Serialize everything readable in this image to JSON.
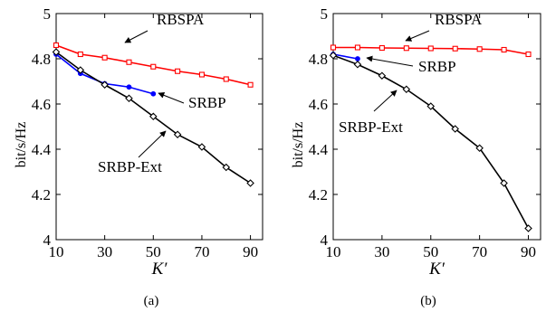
{
  "chart_data": [
    {
      "type": "line",
      "caption": "(a)",
      "xlabel": "K′",
      "ylabel": "bit/s/Hz",
      "xlim": [
        10,
        95
      ],
      "ylim": [
        4,
        5
      ],
      "xticks": [
        10,
        30,
        50,
        70,
        90
      ],
      "yticks": [
        4,
        4.2,
        4.4,
        4.6,
        4.8,
        5
      ],
      "ytick_labels": [
        "4",
        "4.2",
        "4.4",
        "4.6",
        "4.8",
        "5"
      ],
      "series": [
        {
          "name": "RBSPA",
          "color": "#ff0000",
          "marker": "square",
          "x": [
            10,
            20,
            30,
            40,
            50,
            60,
            70,
            80,
            90
          ],
          "y": [
            4.86,
            4.82,
            4.805,
            4.785,
            4.765,
            4.745,
            4.73,
            4.71,
            4.685
          ]
        },
        {
          "name": "SRBP",
          "color": "#0000ff",
          "marker": "dot",
          "x": [
            10,
            20,
            30,
            40,
            50
          ],
          "y": [
            4.82,
            4.735,
            4.69,
            4.675,
            4.645
          ]
        },
        {
          "name": "SRBP-Ext",
          "color": "#000000",
          "marker": "diamond",
          "x": [
            10,
            20,
            30,
            40,
            50,
            60,
            70,
            80,
            90
          ],
          "y": [
            4.83,
            4.75,
            4.685,
            4.625,
            4.545,
            4.465,
            4.41,
            4.32,
            4.25
          ]
        }
      ],
      "annotations": [
        {
          "text": "RBSPA",
          "series": "RBSPA"
        },
        {
          "text": "SRBP",
          "series": "SRBP"
        },
        {
          "text": "SRBP-Ext",
          "series": "SRBP-Ext"
        }
      ]
    },
    {
      "type": "line",
      "caption": "(b)",
      "xlabel": "K′",
      "ylabel": "bit/s/Hz",
      "xlim": [
        10,
        95
      ],
      "ylim": [
        4,
        5
      ],
      "xticks": [
        10,
        30,
        50,
        70,
        90
      ],
      "yticks": [
        4,
        4.2,
        4.4,
        4.6,
        4.8,
        5
      ],
      "ytick_labels": [
        "4",
        "4.2",
        "4.4",
        "4.6",
        "4.8",
        "5"
      ],
      "series": [
        {
          "name": "RBSPA",
          "color": "#ff0000",
          "marker": "square",
          "x": [
            10,
            20,
            30,
            40,
            50,
            60,
            70,
            80,
            90
          ],
          "y": [
            4.85,
            4.85,
            4.848,
            4.847,
            4.846,
            4.845,
            4.843,
            4.84,
            4.82
          ]
        },
        {
          "name": "SRBP",
          "color": "#0000ff",
          "marker": "dot",
          "x": [
            10,
            20
          ],
          "y": [
            4.82,
            4.8
          ]
        },
        {
          "name": "SRBP-Ext",
          "color": "#000000",
          "marker": "diamond",
          "x": [
            10,
            20,
            30,
            40,
            50,
            60,
            70,
            80,
            90
          ],
          "y": [
            4.815,
            4.775,
            4.725,
            4.665,
            4.59,
            4.49,
            4.405,
            4.25,
            4.05
          ]
        }
      ],
      "annotations": [
        {
          "text": "RBSPA",
          "series": "RBSPA"
        },
        {
          "text": "SRBP",
          "series": "SRBP"
        },
        {
          "text": "SRBP-Ext",
          "series": "SRBP-Ext"
        }
      ]
    }
  ]
}
